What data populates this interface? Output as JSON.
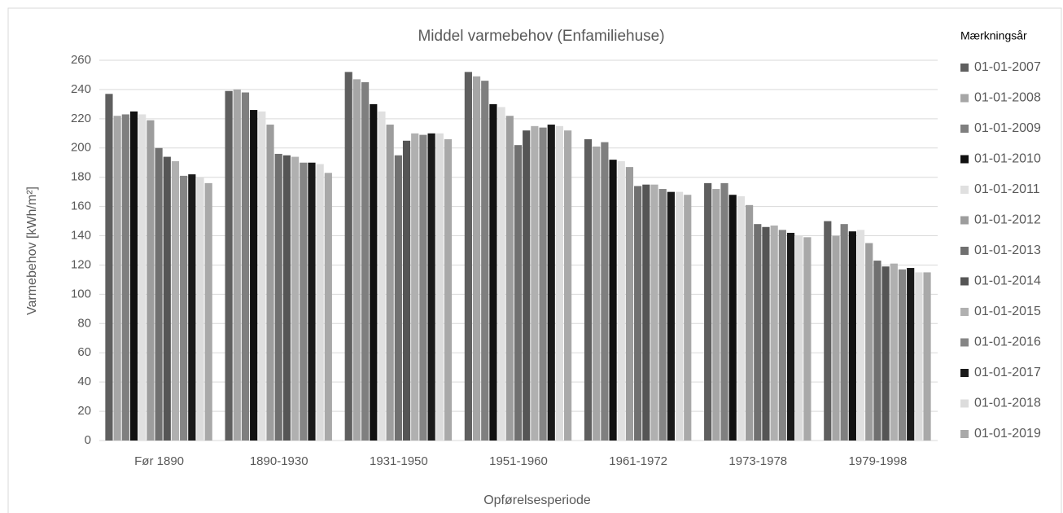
{
  "chart_data": {
    "type": "bar",
    "title": "Middel varmebehov (Enfamiliehuse)",
    "x_label": "Opførelsesperiode",
    "y_label": "Varmebehov [kWh/m²]",
    "legend_title": "Mærkningsår",
    "categories": [
      "Før 1890",
      "1890-1930",
      "1931-1950",
      "1951-1960",
      "1961-1972",
      "1973-1978",
      "1979-1998"
    ],
    "series": [
      {
        "name": "01-01-2007",
        "color": "#5f5f5f",
        "values": [
          237,
          239,
          252,
          252,
          206,
          176,
          150
        ]
      },
      {
        "name": "01-01-2008",
        "color": "#a6a6a6",
        "values": [
          222,
          240,
          247,
          249,
          201,
          172,
          140
        ]
      },
      {
        "name": "01-01-2009",
        "color": "#7f7f7f",
        "values": [
          223,
          238,
          245,
          246,
          204,
          176,
          148
        ]
      },
      {
        "name": "01-01-2010",
        "color": "#111111",
        "values": [
          225,
          226,
          230,
          230,
          192,
          168,
          143
        ]
      },
      {
        "name": "01-01-2011",
        "color": "#e0e0e0",
        "values": [
          223,
          225,
          225,
          228,
          191,
          167,
          144
        ]
      },
      {
        "name": "01-01-2012",
        "color": "#9d9d9d",
        "values": [
          219,
          216,
          216,
          222,
          187,
          161,
          135
        ]
      },
      {
        "name": "01-01-2013",
        "color": "#707070",
        "values": [
          200,
          196,
          195,
          202,
          174,
          148,
          123
        ]
      },
      {
        "name": "01-01-2014",
        "color": "#555555",
        "values": [
          194,
          195,
          205,
          212,
          175,
          146,
          119
        ]
      },
      {
        "name": "01-01-2015",
        "color": "#b0b0b0",
        "values": [
          191,
          194,
          210,
          215,
          175,
          147,
          121
        ]
      },
      {
        "name": "01-01-2016",
        "color": "#858585",
        "values": [
          181,
          190,
          209,
          214,
          172,
          144,
          117
        ]
      },
      {
        "name": "01-01-2017",
        "color": "#1a1a1a",
        "values": [
          182,
          190,
          210,
          216,
          170,
          142,
          118
        ]
      },
      {
        "name": "01-01-2018",
        "color": "#dcdcdc",
        "values": [
          180,
          189,
          210,
          215,
          170,
          140,
          115
        ]
      },
      {
        "name": "01-01-2019",
        "color": "#a9a9a9",
        "values": [
          176,
          183,
          206,
          212,
          168,
          139,
          115
        ]
      }
    ],
    "ylim": [
      0,
      260
    ],
    "yticks": [
      0,
      20,
      40,
      60,
      80,
      100,
      120,
      140,
      160,
      180,
      200,
      220,
      240,
      260
    ],
    "grid": true
  }
}
